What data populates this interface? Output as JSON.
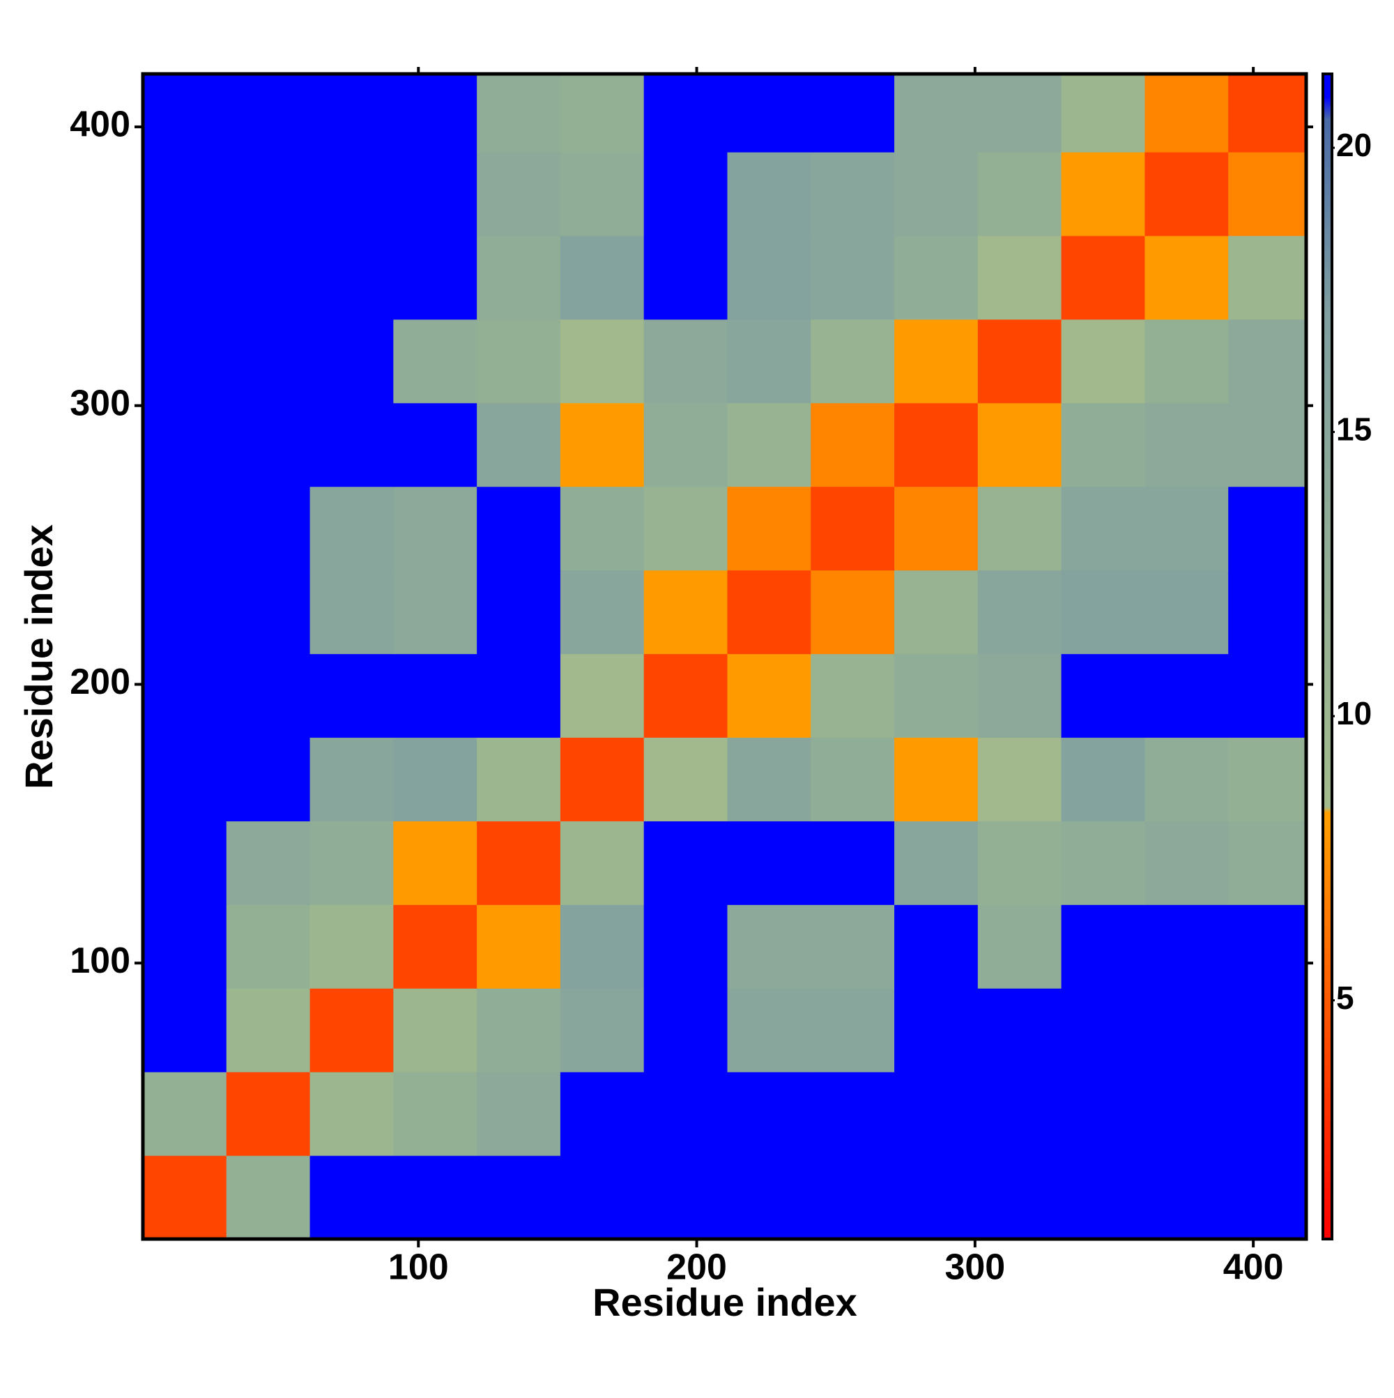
{
  "chart_data": {
    "type": "heatmap",
    "x_label": "Residue index",
    "y_label": "Residue index",
    "xlim": [
      1,
      419
    ],
    "ylim": [
      1,
      419
    ],
    "xticks": [
      100,
      200,
      300,
      400
    ],
    "yticks": [
      100,
      200,
      300,
      400
    ],
    "bins": [
      1,
      31,
      61,
      91,
      121,
      151,
      181,
      211,
      241,
      271,
      301,
      331,
      361,
      391,
      419
    ],
    "z": [
      [
        4,
        12,
        21,
        21,
        21,
        21,
        21,
        21,
        21,
        21,
        21,
        21,
        21,
        21
      ],
      [
        12,
        4,
        10,
        12,
        14,
        21,
        21,
        21,
        21,
        21,
        21,
        21,
        21,
        21
      ],
      [
        21,
        10,
        4,
        10,
        13,
        15,
        21,
        15,
        15,
        21,
        21,
        21,
        21,
        21
      ],
      [
        21,
        12,
        10,
        4,
        8,
        16,
        21,
        14,
        14,
        21,
        13,
        21,
        21,
        21
      ],
      [
        21,
        14,
        13,
        8,
        4,
        10,
        21,
        21,
        21,
        15,
        12,
        13,
        14,
        13
      ],
      [
        21,
        21,
        15,
        16,
        10,
        4,
        9,
        15,
        13,
        8,
        9,
        16,
        13,
        12
      ],
      [
        21,
        21,
        21,
        21,
        21,
        9,
        4,
        8,
        11,
        13,
        14,
        21,
        21,
        21
      ],
      [
        21,
        21,
        15,
        14,
        21,
        15,
        8,
        4,
        7,
        11,
        15,
        16,
        16,
        21
      ],
      [
        21,
        21,
        15,
        14,
        21,
        13,
        11,
        7,
        4,
        7,
        11,
        15,
        15,
        21
      ],
      [
        21,
        21,
        21,
        21,
        15,
        8,
        13,
        11,
        7,
        4,
        8,
        13,
        14,
        14
      ],
      [
        21,
        21,
        21,
        13,
        12,
        9,
        14,
        15,
        11,
        8,
        4,
        9,
        12,
        14
      ],
      [
        21,
        21,
        21,
        21,
        13,
        16,
        21,
        16,
        15,
        13,
        9,
        4,
        8,
        10
      ],
      [
        21,
        21,
        21,
        21,
        14,
        13,
        21,
        16,
        15,
        14,
        12,
        8,
        4,
        7
      ],
      [
        21,
        21,
        21,
        21,
        13,
        12,
        21,
        21,
        21,
        14,
        14,
        10,
        7,
        4
      ]
    ],
    "colorbar": {
      "lim": [
        0.8,
        21.3
      ],
      "ticks": [
        5,
        10,
        15,
        20
      ],
      "colors": [
        {
          "value": 0.8,
          "color": "#ff0000"
        },
        {
          "value": 5,
          "color": "#ff5a00"
        },
        {
          "value": 8.3,
          "color": "#ffa000"
        },
        {
          "value": 8.4,
          "color": "#a3bb8c"
        },
        {
          "value": 17,
          "color": "#80a0a0"
        },
        {
          "value": 20.5,
          "color": "#4a6aa8"
        },
        {
          "value": 20.9,
          "color": "#0000ff"
        },
        {
          "value": 21.3,
          "color": "#0000ff"
        }
      ]
    }
  }
}
